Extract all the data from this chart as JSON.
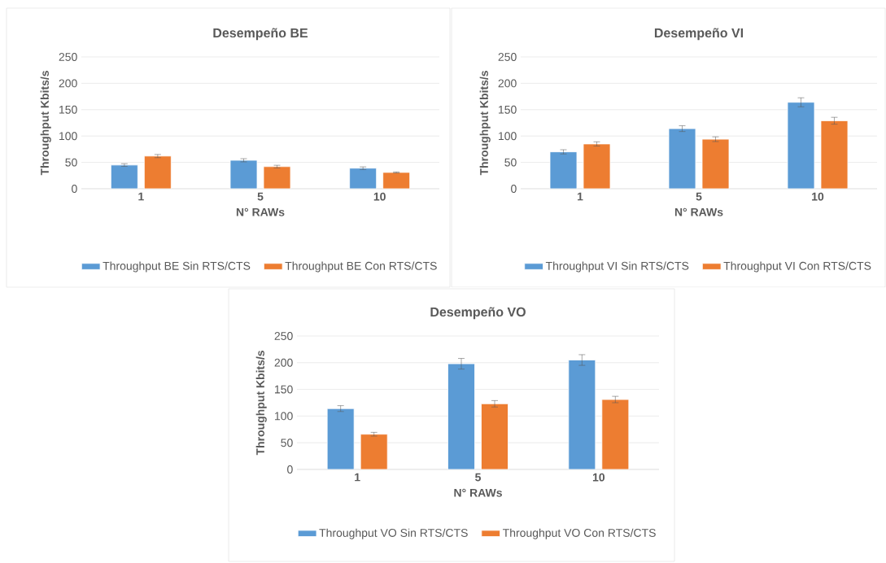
{
  "chart_data": [
    {
      "type": "bar",
      "title": "Desempeño BE",
      "xlabel": "N° RAWs",
      "ylabel": "Throughput Kbits/s",
      "categories": [
        "1",
        "5",
        "10"
      ],
      "series": [
        {
          "name": "Throughput BE Sin RTS/CTS",
          "color": "#5b9bd5",
          "values": [
            45,
            54,
            39
          ],
          "errors": [
            2.5,
            3,
            2.5
          ]
        },
        {
          "name": "Throughput BE Con RTS/CTS",
          "color": "#ed7d31",
          "values": [
            62,
            42,
            31
          ],
          "errors": [
            3,
            2.5,
            1
          ]
        }
      ],
      "ylim": [
        0,
        250
      ],
      "yticks": [
        0,
        50,
        100,
        150,
        200,
        250
      ],
      "grid": "y",
      "legend": "bottom"
    },
    {
      "type": "bar",
      "title": "Desempeño VI",
      "xlabel": "N° RAWs",
      "ylabel": "Throughput Kbits/s",
      "categories": [
        "1",
        "5",
        "10"
      ],
      "series": [
        {
          "name": "Throughput VI Sin RTS/CTS",
          "color": "#5b9bd5",
          "values": [
            70,
            114,
            164
          ],
          "errors": [
            4,
            5.5,
            8.5
          ]
        },
        {
          "name": "Throughput VI Con RTS/CTS",
          "color": "#ed7d31",
          "values": [
            85,
            94,
            129
          ],
          "errors": [
            4,
            4.5,
            6.5
          ]
        }
      ],
      "ylim": [
        0,
        250
      ],
      "yticks": [
        0,
        50,
        100,
        150,
        200,
        250
      ],
      "grid": "y",
      "legend": "bottom"
    },
    {
      "type": "bar",
      "title": "Desempeño VO",
      "xlabel": "N° RAWs",
      "ylabel": "Throughput Kbits/s",
      "categories": [
        "1",
        "5",
        "10"
      ],
      "series": [
        {
          "name": "Throughput VO Sin RTS/CTS",
          "color": "#5b9bd5",
          "values": [
            114,
            198,
            205
          ],
          "errors": [
            5.5,
            10,
            10
          ]
        },
        {
          "name": "Throughput VO Con RTS/CTS",
          "color": "#ed7d31",
          "values": [
            66,
            123,
            131
          ],
          "errors": [
            3.5,
            6,
            6
          ]
        }
      ],
      "ylim": [
        0,
        250
      ],
      "yticks": [
        0,
        50,
        100,
        150,
        200,
        250
      ],
      "grid": "y",
      "legend": "bottom"
    }
  ]
}
